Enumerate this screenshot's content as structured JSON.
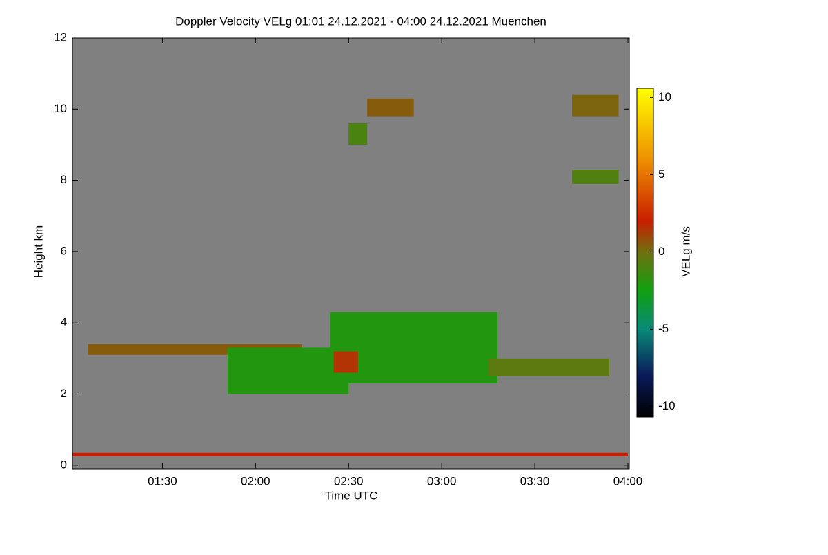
{
  "chart_data": {
    "type": "heatmap",
    "title": "Doppler Velocity VELg   01:01 24.12.2021 - 04:00 24.12.2021 Muenchen",
    "x_label": "Time UTC",
    "y_label": "Height km",
    "colorbar_label": "VELg m/s",
    "xlim": [
      1.0167,
      4.0
    ],
    "xticks": [
      {
        "value": 1.5,
        "label": "01:30"
      },
      {
        "value": 2.0,
        "label": "02:00"
      },
      {
        "value": 2.5,
        "label": "02:30"
      },
      {
        "value": 3.0,
        "label": "03:00"
      },
      {
        "value": 3.5,
        "label": "03:30"
      },
      {
        "value": 4.0,
        "label": "04:00"
      }
    ],
    "ylim": [
      -0.1,
      12
    ],
    "yticks": [
      0,
      2,
      4,
      6,
      8,
      10,
      12
    ],
    "clim": [
      -10.7,
      10.6
    ],
    "cticks": [
      -10,
      -5,
      0,
      5,
      10
    ],
    "background": "#808080",
    "colormap": [
      {
        "value": -10.7,
        "color": "#000000"
      },
      {
        "value": -8,
        "color": "#0a1a5a"
      },
      {
        "value": -5,
        "color": "#0a8a78"
      },
      {
        "value": -2.5,
        "color": "#10a010"
      },
      {
        "value": 0,
        "color": "#707010"
      },
      {
        "value": 2,
        "color": "#c81e00"
      },
      {
        "value": 6,
        "color": "#ee9000"
      },
      {
        "value": 10.6,
        "color": "#ffff00"
      }
    ],
    "cells": [
      {
        "t": [
          1.0167,
          4.0
        ],
        "h": [
          0.25,
          0.35
        ],
        "v": 2
      },
      {
        "t": [
          1.1,
          2.25
        ],
        "h": [
          3.1,
          3.4
        ],
        "v": 0.5
      },
      {
        "t": [
          1.85,
          2.5
        ],
        "h": [
          2.0,
          3.3
        ],
        "v": -2
      },
      {
        "t": [
          2.4,
          3.3
        ],
        "h": [
          2.3,
          4.3
        ],
        "v": -2
      },
      {
        "t": [
          2.42,
          2.55
        ],
        "h": [
          2.6,
          3.2
        ],
        "v": 1.5
      },
      {
        "t": [
          3.25,
          3.9
        ],
        "h": [
          2.5,
          3.0
        ],
        "v": -0.5
      },
      {
        "t": [
          2.5,
          2.6
        ],
        "h": [
          9.0,
          9.6
        ],
        "v": -1
      },
      {
        "t": [
          2.6,
          2.85
        ],
        "h": [
          9.8,
          10.3
        ],
        "v": 0.5
      },
      {
        "t": [
          3.7,
          3.95
        ],
        "h": [
          9.8,
          10.4
        ],
        "v": 0.3
      },
      {
        "t": [
          3.7,
          3.95
        ],
        "h": [
          7.9,
          8.3
        ],
        "v": -0.8
      }
    ]
  }
}
